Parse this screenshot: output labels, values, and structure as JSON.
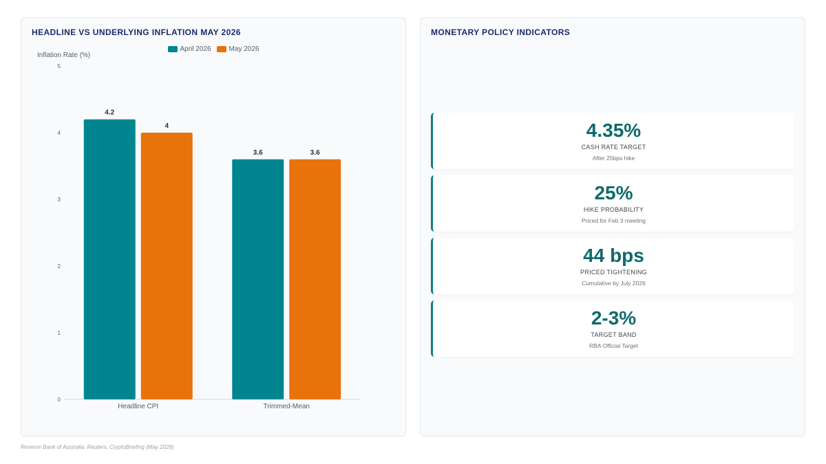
{
  "colors": {
    "april": "#008590",
    "may": "#e8720c",
    "accent": "#0f7f81",
    "title": "#1a2a6c"
  },
  "left_panel": {
    "title": "HEADLINE VS UNDERLYING INFLATION MAY 2026"
  },
  "right_panel": {
    "title": "MONETARY POLICY INDICATORS",
    "kpis": [
      {
        "value": "4.35%",
        "label": "CASH RATE TARGET",
        "sub": "After 25bps hike"
      },
      {
        "value": "25%",
        "label": "HIKE PROBABILITY",
        "sub": "Priced for Feb 3 meeting"
      },
      {
        "value": "44 bps",
        "label": "PRICED TIGHTENING",
        "sub": "Cumulative by July 2026"
      },
      {
        "value": "2-3%",
        "label": "TARGET BAND",
        "sub": "RBA Official Target"
      }
    ]
  },
  "chart_data": {
    "type": "bar",
    "title": "HEADLINE VS UNDERLYING INFLATION MAY 2026",
    "xlabel": "",
    "ylabel": "Inflation Rate (%)",
    "categories": [
      "Headline CPI",
      "Trimmed-Mean"
    ],
    "series": [
      {
        "name": "April 2026",
        "values": [
          4.2,
          3.6
        ],
        "labels": [
          "4.2",
          "3.6"
        ]
      },
      {
        "name": "May 2026",
        "values": [
          4,
          3.6
        ],
        "labels": [
          "4",
          "3.6"
        ]
      }
    ],
    "ylim": [
      0,
      5
    ],
    "yticks": [
      "0",
      "1",
      "2",
      "3",
      "4",
      "5"
    ],
    "legend": "top",
    "grid": false
  },
  "source": "Reserve Bank of Australia, Reuters, CryptoBriefing (May 2026)"
}
